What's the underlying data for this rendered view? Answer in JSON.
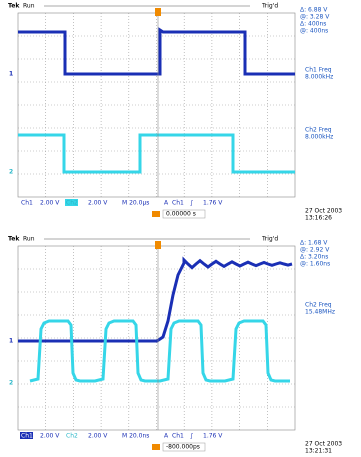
{
  "scopes": [
    {
      "brand": "Tek",
      "status": "Run",
      "trigger_state": "Trig'd",
      "readouts": [
        "Δ: 6.88 V",
        "@: 3.28 V",
        "Δ: 400ns",
        "@: 400ns"
      ],
      "measurements": [
        {
          "label": "Ch1 Freq",
          "value": "8.000kHz"
        },
        {
          "label": "Ch2 Freq",
          "value": "8.000kHz"
        }
      ],
      "channel_markers": [
        "1",
        "2"
      ],
      "settings": [
        "Ch1",
        "2.00 V",
        "Ch2",
        "2.00 V",
        "M 20.0µs",
        "A",
        "Ch1",
        "∫",
        "1.76 V"
      ],
      "trigger_position": "0.00000 s",
      "date": "27 Oct 2003",
      "time": "13:16:26"
    },
    {
      "brand": "Tek",
      "status": "Run",
      "trigger_state": "Trig'd",
      "readouts": [
        "Δ: 1.68 V",
        "@: 2.92 V",
        "Δ: 3.20ns",
        "@: 1.60ns"
      ],
      "measurements": [
        {
          "label": "Ch2 Freq",
          "value": "15.48MHz"
        }
      ],
      "channel_markers": [
        "1",
        "2"
      ],
      "settings": [
        "Ch1",
        "2.00 V",
        "Ch2",
        "2.00 V",
        "M 20.0ns",
        "A",
        "Ch1",
        "∫",
        "1.76 V"
      ],
      "trigger_position": "-800.000ps",
      "date": "27 Oct 2003",
      "time": "13:21:31"
    }
  ]
}
